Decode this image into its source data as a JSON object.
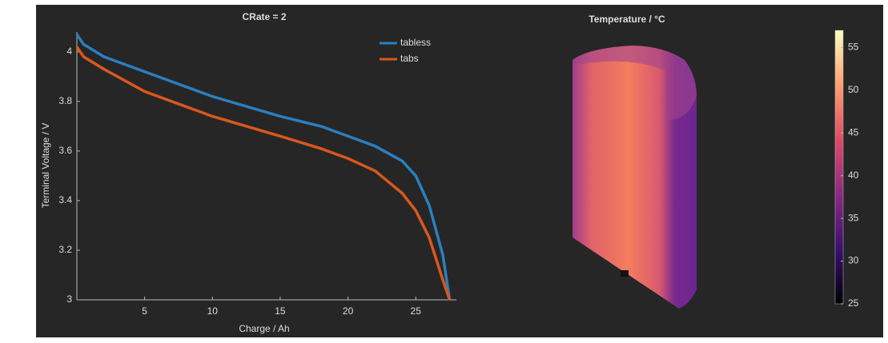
{
  "chart_data": [
    {
      "type": "line",
      "title": "CRate = 2",
      "xlabel": "Charge  /  Ah",
      "ylabel": "Terminal Voltage  /  V",
      "x": [
        0,
        0.5,
        2,
        5,
        10,
        15,
        18,
        20,
        22,
        24,
        25,
        26,
        27,
        27.5
      ],
      "series": [
        {
          "name": "tabless",
          "color": "#2a7fbf",
          "values": [
            4.07,
            4.03,
            3.98,
            3.92,
            3.82,
            3.74,
            3.7,
            3.66,
            3.62,
            3.56,
            3.5,
            3.38,
            3.18,
            3.0
          ]
        },
        {
          "name": "tabs",
          "color": "#d9581e",
          "values": [
            4.02,
            3.98,
            3.93,
            3.84,
            3.74,
            3.66,
            3.61,
            3.57,
            3.52,
            3.43,
            3.36,
            3.25,
            3.08,
            3.0
          ]
        }
      ],
      "xlim": [
        0,
        28
      ],
      "ylim": [
        3,
        4.08
      ],
      "xticks": [
        5,
        10,
        15,
        20,
        25
      ],
      "yticks": [
        3,
        3.2,
        3.4,
        3.6,
        3.8,
        4
      ]
    },
    {
      "type": "colorbar",
      "title": "Temperature  /  °C",
      "clim": [
        25,
        57
      ],
      "cticks": [
        25,
        30,
        35,
        40,
        45,
        50,
        55
      ],
      "colormap": [
        "#000004",
        "#3b0f70",
        "#8c2981",
        "#de4968",
        "#fe9f6d",
        "#fcfdbf"
      ]
    }
  ]
}
